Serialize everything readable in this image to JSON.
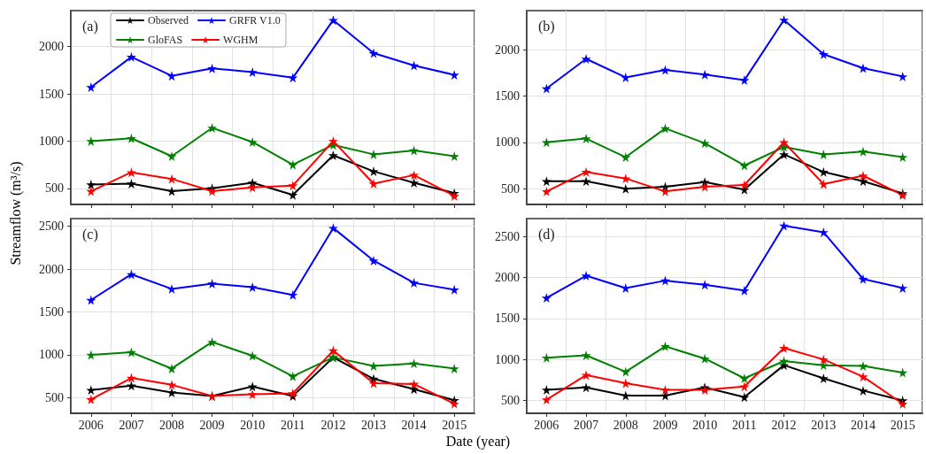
{
  "chart_data": [
    {
      "type": "line",
      "title": "(a)",
      "ylabel": "Streamflow (m³/s)",
      "categories": [
        "2006",
        "2007",
        "2008",
        "2009",
        "2010",
        "2011",
        "2012",
        "2013",
        "2014",
        "2015"
      ],
      "ylim": [
        330,
        2380
      ],
      "yticks": [
        500,
        1000,
        1500,
        2000
      ],
      "grid": true,
      "legend": "top left",
      "marker": "star",
      "line_style": "solid",
      "tick_labels": "y",
      "series": [
        {
          "name": "Observed",
          "color": "#000000",
          "values": [
            540,
            550,
            470,
            500,
            560,
            430,
            850,
            680,
            560,
            450
          ]
        },
        {
          "name": "GloFAS",
          "color": "#008000",
          "values": [
            1000,
            1030,
            840,
            1140,
            990,
            750,
            960,
            860,
            900,
            840
          ]
        },
        {
          "name": "GRFR V1.0",
          "color": "#0000ff",
          "values": [
            1570,
            1890,
            1690,
            1770,
            1730,
            1670,
            2280,
            1930,
            1800,
            1700
          ]
        },
        {
          "name": "WGHM",
          "color": "#ff0000",
          "values": [
            470,
            670,
            600,
            470,
            510,
            530,
            1000,
            550,
            640,
            420
          ]
        }
      ]
    },
    {
      "type": "line",
      "title": "(b)",
      "categories": [
        "2006",
        "2007",
        "2008",
        "2009",
        "2010",
        "2011",
        "2012",
        "2013",
        "2014",
        "2015"
      ],
      "ylim": [
        330,
        2420
      ],
      "yticks": [
        500,
        1000,
        1500,
        2000
      ],
      "grid": true,
      "marker": "star",
      "line_style": "solid",
      "tick_labels": "y",
      "series": [
        {
          "color": "#000000",
          "values": [
            580,
            580,
            500,
            520,
            570,
            490,
            870,
            680,
            580,
            450
          ]
        },
        {
          "color": "#008000",
          "values": [
            1000,
            1040,
            840,
            1150,
            990,
            750,
            950,
            870,
            900,
            840
          ]
        },
        {
          "color": "#0000ff",
          "values": [
            1580,
            1900,
            1700,
            1780,
            1730,
            1670,
            2320,
            1950,
            1800,
            1710
          ]
        },
        {
          "color": "#ff0000",
          "values": [
            470,
            680,
            610,
            470,
            520,
            540,
            1000,
            550,
            640,
            430
          ]
        }
      ]
    },
    {
      "type": "line",
      "title": "(c)",
      "xlabel": "Date (year)",
      "categories": [
        "2006",
        "2007",
        "2008",
        "2009",
        "2010",
        "2011",
        "2012",
        "2013",
        "2014",
        "2015"
      ],
      "ylim": [
        318,
        2590
      ],
      "yticks": [
        500,
        1000,
        1500,
        2000,
        2500
      ],
      "grid": true,
      "marker": "star",
      "line_style": "solid",
      "series": [
        {
          "color": "#000000",
          "values": [
            590,
            640,
            560,
            520,
            630,
            520,
            970,
            720,
            600,
            470
          ]
        },
        {
          "color": "#008000",
          "values": [
            1000,
            1030,
            840,
            1150,
            990,
            750,
            970,
            870,
            900,
            840
          ]
        },
        {
          "color": "#0000ff",
          "values": [
            1640,
            1940,
            1770,
            1830,
            1790,
            1700,
            2480,
            2100,
            1840,
            1760
          ]
        },
        {
          "color": "#ff0000",
          "values": [
            480,
            730,
            650,
            520,
            540,
            550,
            1050,
            670,
            660,
            430
          ]
        }
      ]
    },
    {
      "type": "line",
      "title": "(d)",
      "categories": [
        "2006",
        "2007",
        "2008",
        "2009",
        "2010",
        "2011",
        "2012",
        "2013",
        "2014",
        "2015"
      ],
      "ylim": [
        344,
        2716
      ],
      "yticks": [
        500,
        1000,
        1500,
        2000,
        2500
      ],
      "grid": true,
      "marker": "star",
      "line_style": "solid",
      "series": [
        {
          "color": "#000000",
          "values": [
            630,
            660,
            560,
            560,
            660,
            540,
            930,
            770,
            620,
            500
          ]
        },
        {
          "color": "#008000",
          "values": [
            1020,
            1050,
            850,
            1160,
            1010,
            770,
            980,
            930,
            920,
            840
          ]
        },
        {
          "color": "#0000ff",
          "values": [
            1750,
            2020,
            1870,
            1960,
            1910,
            1840,
            2630,
            2550,
            1980,
            1870
          ]
        },
        {
          "color": "#ff0000",
          "values": [
            510,
            810,
            710,
            630,
            630,
            670,
            1140,
            1000,
            790,
            460
          ]
        }
      ]
    }
  ]
}
